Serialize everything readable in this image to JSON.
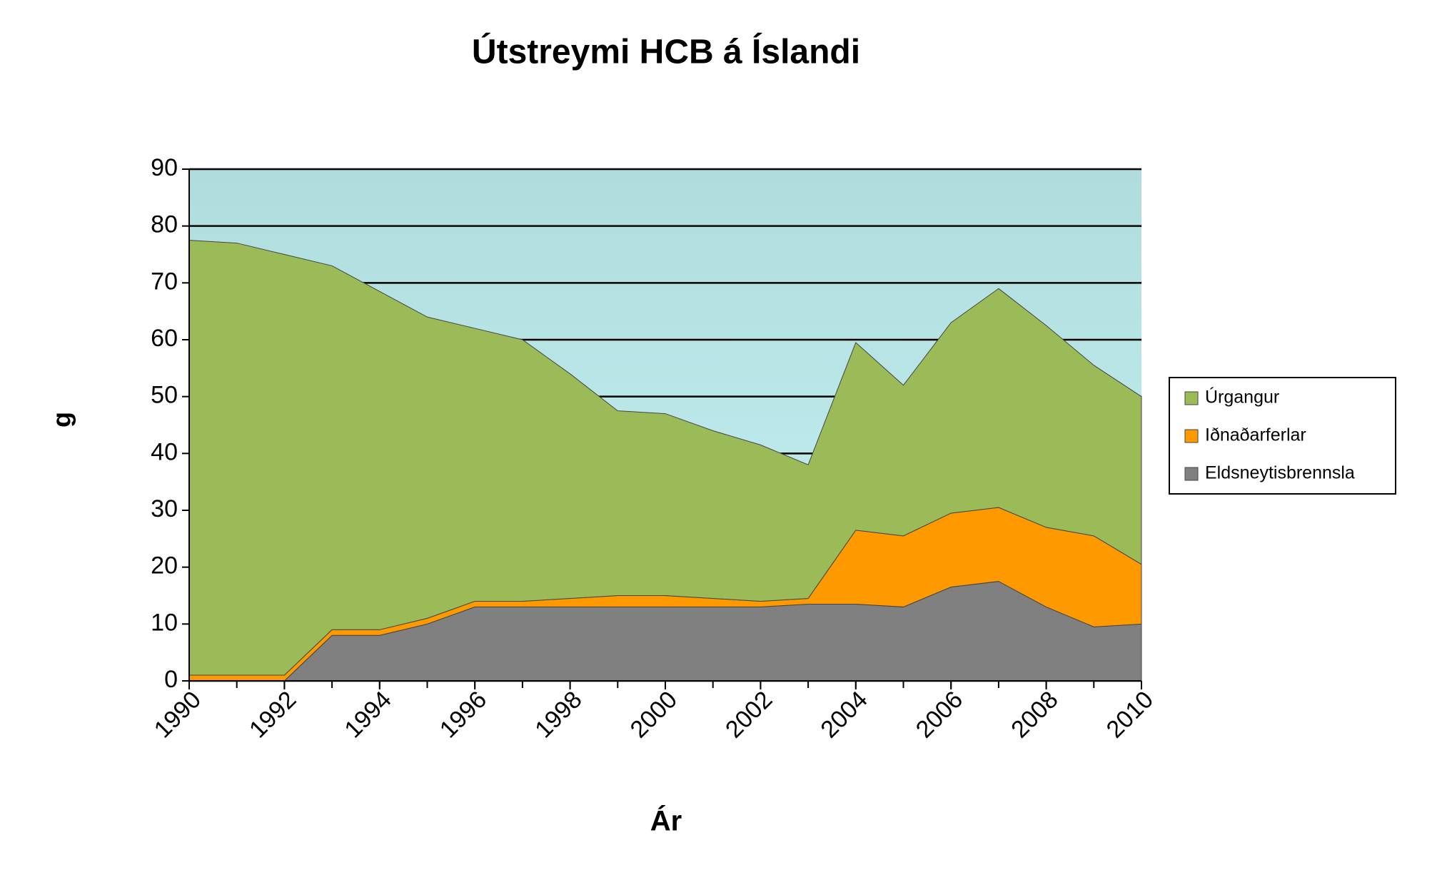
{
  "chart_data": {
    "type": "stacked_area",
    "title": "Útstreymi HCB á Íslandi",
    "x_label": "Ár",
    "y_label": "g",
    "x": [
      1990,
      1991,
      1992,
      1993,
      1994,
      1995,
      1996,
      1997,
      1998,
      1999,
      2000,
      2001,
      2002,
      2003,
      2004,
      2005,
      2006,
      2007,
      2008,
      2009,
      2010
    ],
    "series": [
      {
        "name": "Eldsneytisbrennsla",
        "color": "#808080",
        "values": [
          0,
          0,
          0,
          8,
          8,
          10,
          13,
          13,
          13,
          13,
          13,
          13,
          13,
          13.5,
          13.5,
          13,
          16.5,
          17.5,
          13,
          9.5,
          10
        ]
      },
      {
        "name": "Iðnaðarferlar",
        "color": "#ff9900",
        "values": [
          1,
          1,
          1,
          1,
          1,
          1,
          1,
          1,
          1.5,
          2,
          2,
          1.5,
          1,
          1,
          13,
          12.5,
          13,
          13,
          14,
          16,
          10.5
        ]
      },
      {
        "name": "Úrgangur",
        "color": "#9bbb59",
        "values": [
          76.5,
          76,
          74,
          64,
          59.5,
          53,
          48,
          46,
          39.5,
          32.5,
          32,
          29.5,
          27.5,
          23.5,
          33,
          26.5,
          33.5,
          38.5,
          35.5,
          30,
          29.5
        ]
      }
    ],
    "xlim": [
      1990,
      2010
    ],
    "xticks": [
      1990,
      1992,
      1994,
      1996,
      1998,
      2000,
      2002,
      2004,
      2006,
      2008,
      2010
    ],
    "ylim": [
      0,
      90
    ],
    "yticks": [
      0,
      10,
      20,
      30,
      40,
      50,
      60,
      70,
      80,
      90
    ],
    "grid": true,
    "legend": "right"
  }
}
